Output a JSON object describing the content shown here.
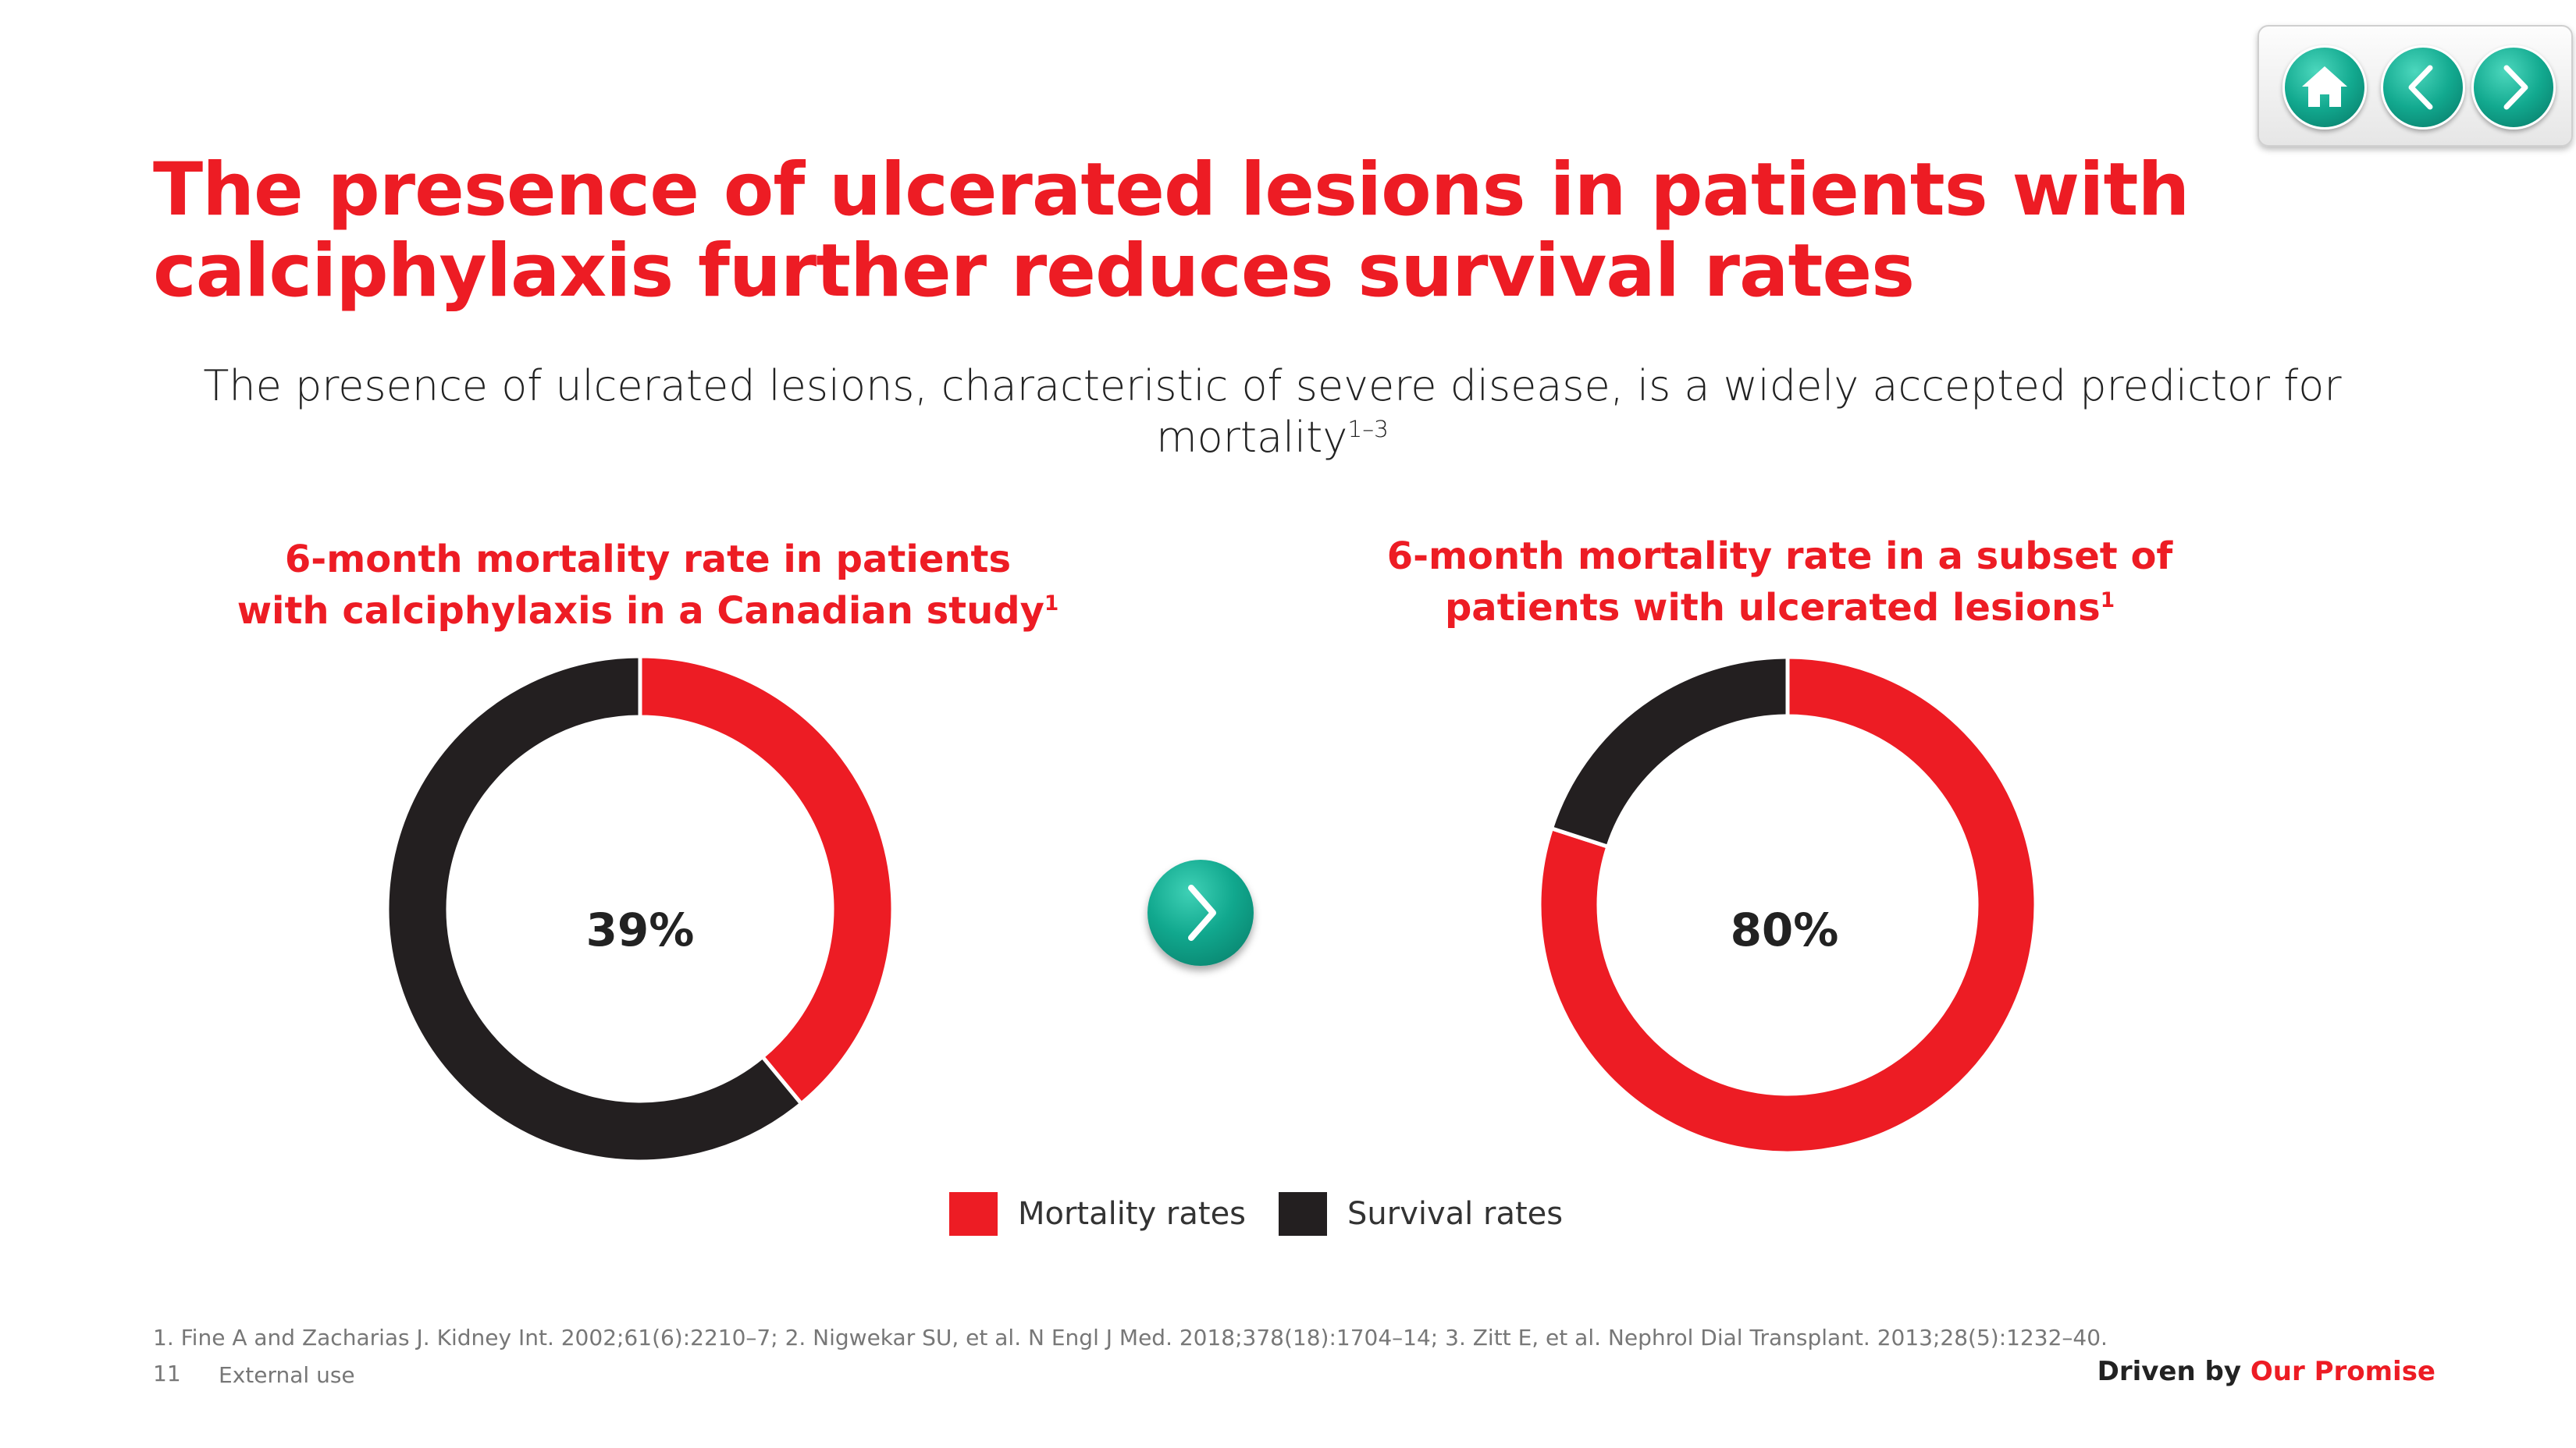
{
  "header": {
    "title": "The presence of ulcerated lesions in patients with calciphylaxis further reduces survival rates",
    "subtitle": "The presence of ulcerated lesions, characteristic of severe disease, is a widely accepted predictor for mortality",
    "subtitle_sup": "1–3"
  },
  "colors": {
    "mortality": "#ed1c24",
    "survival": "#231f20",
    "accent": "#ed1c24",
    "teal": "#12a98f"
  },
  "nav": {
    "home_icon": "home-icon",
    "back_icon": "chevron-left-icon",
    "forward_icon": "chevron-right-icon"
  },
  "chart_data": [
    {
      "type": "pie",
      "title": "6-month mortality rate in patients with calciphylaxis in a Canadian study",
      "title_sup": "1",
      "center_label": "39%",
      "categories": [
        "Mortality rates",
        "Survival rates"
      ],
      "values": [
        39,
        61
      ]
    },
    {
      "type": "pie",
      "title": "6-month mortality rate in a subset of patients with ulcerated lesions",
      "title_sup": "1",
      "center_label": "80%",
      "categories": [
        "Mortality rates",
        "Survival rates"
      ],
      "values": [
        80,
        20
      ]
    }
  ],
  "legend": [
    {
      "label": "Mortality rates",
      "color": "#ed1c24"
    },
    {
      "label": "Survival rates",
      "color": "#231f20"
    }
  ],
  "footer": {
    "references": "1. Fine A and Zacharias J. Kidney Int. 2002;61(6):2210–7; 2. Nigwekar SU, et al. N Engl J Med. 2018;378(18):1704–14; 3. Zitt E, et al. Nephrol Dial Transplant. 2013;28(5):1232–40.",
    "page_number": "11",
    "classification": "External use",
    "tagline_prefix": "Driven by ",
    "tagline_accent": "Our Promise"
  }
}
